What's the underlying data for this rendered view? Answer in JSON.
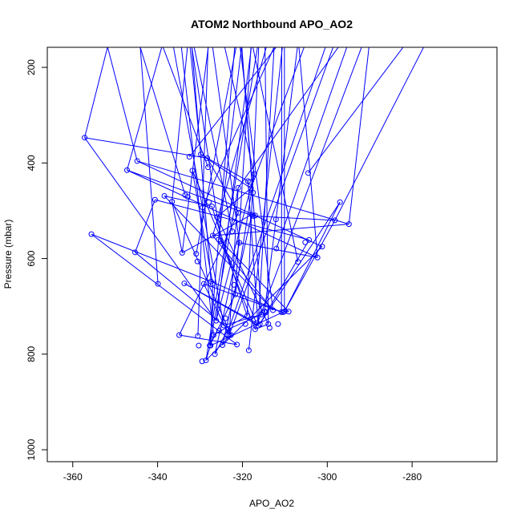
{
  "chart_data": {
    "type": "scatter",
    "title": "ATOM2 Northbound APO_AO2",
    "xlabel": "APO_AO2",
    "ylabel": "Pressure (mbar)",
    "xlim": [
      -366,
      -260
    ],
    "ylim": [
      1025,
      158
    ],
    "y_reversed": true,
    "x_ticks": [
      -360,
      -340,
      -320,
      -300,
      -280
    ],
    "y_ticks": [
      200,
      400,
      600,
      800,
      1000
    ],
    "grid": false,
    "series_color": "#0000ff",
    "points": [
      [
        -357.2,
        347
      ],
      [
        -355.6,
        549
      ],
      [
        -347.2,
        415
      ],
      [
        -345.3,
        587
      ],
      [
        -344.8,
        396
      ],
      [
        -340.6,
        477
      ],
      [
        -339.9,
        653
      ],
      [
        -338.4,
        469
      ],
      [
        -336.6,
        481
      ],
      [
        -334.9,
        760
      ],
      [
        -334.2,
        588
      ],
      [
        -333.7,
        652
      ],
      [
        -333.5,
        467
      ],
      [
        -332.9,
        471
      ],
      [
        -332.5,
        387
      ],
      [
        -331.8,
        416
      ],
      [
        -330.9,
        590
      ],
      [
        -330.6,
        606
      ],
      [
        -330.5,
        762
      ],
      [
        -330.3,
        782
      ],
      [
        -329.8,
        382
      ],
      [
        -329.5,
        815
      ],
      [
        -329.4,
        493
      ],
      [
        -329.1,
        653
      ],
      [
        -328.6,
        813
      ],
      [
        -328.3,
        390
      ],
      [
        -328.1,
        409
      ],
      [
        -327.9,
        482
      ],
      [
        -327.7,
        782
      ],
      [
        -327.5,
        782
      ],
      [
        -327.4,
        648
      ],
      [
        -327.2,
        491
      ],
      [
        -327.0,
        552
      ],
      [
        -327.0,
        653
      ],
      [
        -326.8,
        760
      ],
      [
        -326.5,
        800
      ],
      [
        -326.2,
        730
      ],
      [
        -326.0,
        513
      ],
      [
        -325.6,
        560
      ],
      [
        -325.5,
        751
      ],
      [
        -325.1,
        563
      ],
      [
        -324.7,
        781
      ],
      [
        -324.4,
        740
      ],
      [
        -324.0,
        725
      ],
      [
        -323.7,
        760
      ],
      [
        -323.4,
        748
      ],
      [
        -323.1,
        760
      ],
      [
        -322.7,
        760
      ],
      [
        -322.4,
        543
      ],
      [
        -322.0,
        655
      ],
      [
        -321.7,
        675
      ],
      [
        -321.3,
        780
      ],
      [
        -321.0,
        452
      ],
      [
        -320.9,
        504
      ],
      [
        -320.7,
        567
      ],
      [
        -319.3,
        737
      ],
      [
        -318.9,
        720
      ],
      [
        -318.7,
        438
      ],
      [
        -318.5,
        792
      ],
      [
        -318.2,
        440
      ],
      [
        -318.0,
        453
      ],
      [
        -317.8,
        508
      ],
      [
        -317.5,
        462
      ],
      [
        -317.4,
        511
      ],
      [
        -317.2,
        423
      ],
      [
        -317.0,
        510
      ],
      [
        -317.0,
        748
      ],
      [
        -316.7,
        735
      ],
      [
        -316.3,
        740
      ],
      [
        -315.9,
        737
      ],
      [
        -315.5,
        717
      ],
      [
        -315.2,
        713
      ],
      [
        -314.8,
        711
      ],
      [
        -314.4,
        712
      ],
      [
        -313.9,
        737
      ],
      [
        -313.6,
        745
      ],
      [
        -312.8,
        708
      ],
      [
        -312.1,
        518
      ],
      [
        -312.0,
        579
      ],
      [
        -311.6,
        737
      ],
      [
        -310.8,
        712
      ],
      [
        -310.4,
        712
      ],
      [
        -310.1,
        711
      ],
      [
        -309.1,
        711
      ],
      [
        -306.9,
        607
      ],
      [
        -305.2,
        566
      ],
      [
        -304.5,
        421
      ],
      [
        -304.3,
        561
      ],
      [
        -302.3,
        598
      ],
      [
        -301.2,
        575
      ],
      [
        -298.2,
        520
      ],
      [
        -297.0,
        482
      ],
      [
        -294.9,
        528
      ]
    ]
  }
}
